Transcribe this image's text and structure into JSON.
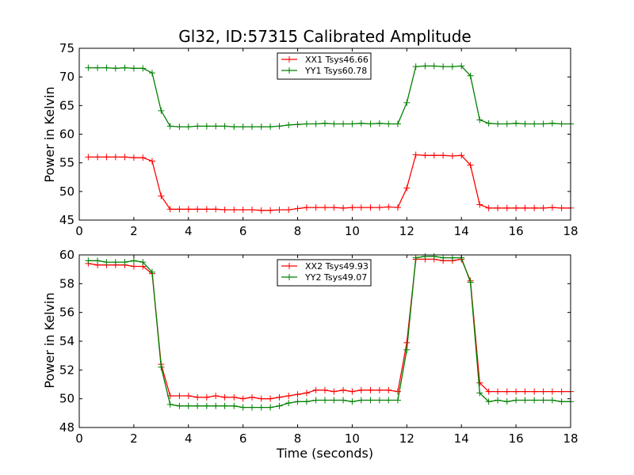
{
  "figure": {
    "title": "Gl32, ID:57315 Calibrated Amplitude",
    "xlabel": "Time (seconds)"
  },
  "chart_data": [
    {
      "type": "line",
      "ylabel": "Power in Kelvin",
      "xlim": [
        0,
        18
      ],
      "ylim": [
        45,
        75
      ],
      "xticks": [
        0,
        2,
        4,
        6,
        8,
        10,
        12,
        14,
        16,
        18
      ],
      "yticks": [
        45,
        50,
        55,
        60,
        65,
        70,
        75
      ],
      "grid": false,
      "legend_position": "top-center",
      "x": [
        0.33,
        0.67,
        1.0,
        1.33,
        1.67,
        2.0,
        2.33,
        2.67,
        3.0,
        3.33,
        3.67,
        4.0,
        4.33,
        4.67,
        5.0,
        5.33,
        5.67,
        6.0,
        6.33,
        6.67,
        7.0,
        7.33,
        7.67,
        8.0,
        8.33,
        8.67,
        9.0,
        9.33,
        9.67,
        10.0,
        10.33,
        10.67,
        11.0,
        11.33,
        11.67,
        12.0,
        12.33,
        12.67,
        13.0,
        13.33,
        13.67,
        14.0,
        14.33,
        14.67,
        15.0,
        15.33,
        15.67,
        16.0,
        16.33,
        16.67,
        17.0,
        17.33,
        17.67,
        18.0
      ],
      "series": [
        {
          "name": "XX1 Tsys46.66",
          "color": "#ff0000",
          "values": [
            56.0,
            56.0,
            56.0,
            56.0,
            56.0,
            55.9,
            55.9,
            55.3,
            49.2,
            46.9,
            46.9,
            46.9,
            46.9,
            46.9,
            46.9,
            46.8,
            46.8,
            46.8,
            46.8,
            46.7,
            46.7,
            46.8,
            46.8,
            47.0,
            47.2,
            47.2,
            47.2,
            47.2,
            47.1,
            47.2,
            47.2,
            47.2,
            47.2,
            47.3,
            47.2,
            50.6,
            56.4,
            56.3,
            56.3,
            56.3,
            56.2,
            56.3,
            54.6,
            47.7,
            47.1,
            47.1,
            47.1,
            47.1,
            47.1,
            47.1,
            47.1,
            47.2,
            47.1,
            47.1
          ]
        },
        {
          "name": "YY1 Tsys60.78",
          "color": "#008000",
          "values": [
            71.6,
            71.6,
            71.6,
            71.5,
            71.6,
            71.5,
            71.5,
            70.7,
            64.1,
            61.4,
            61.3,
            61.3,
            61.4,
            61.4,
            61.4,
            61.4,
            61.3,
            61.3,
            61.3,
            61.3,
            61.3,
            61.4,
            61.6,
            61.7,
            61.8,
            61.8,
            61.9,
            61.8,
            61.8,
            61.8,
            61.9,
            61.8,
            61.9,
            61.8,
            61.8,
            65.5,
            71.8,
            71.9,
            71.9,
            71.8,
            71.8,
            71.9,
            70.2,
            62.5,
            61.9,
            61.8,
            61.8,
            61.9,
            61.8,
            61.8,
            61.8,
            61.9,
            61.8,
            61.8
          ]
        }
      ]
    },
    {
      "type": "line",
      "ylabel": "Power in Kelvin",
      "xlim": [
        0,
        18
      ],
      "ylim": [
        48,
        60
      ],
      "xticks": [
        0,
        2,
        4,
        6,
        8,
        10,
        12,
        14,
        16,
        18
      ],
      "yticks": [
        48,
        50,
        52,
        54,
        56,
        58,
        60
      ],
      "grid": false,
      "legend_position": "top-center",
      "x": [
        0.33,
        0.67,
        1.0,
        1.33,
        1.67,
        2.0,
        2.33,
        2.67,
        3.0,
        3.33,
        3.67,
        4.0,
        4.33,
        4.67,
        5.0,
        5.33,
        5.67,
        6.0,
        6.33,
        6.67,
        7.0,
        7.33,
        7.67,
        8.0,
        8.33,
        8.67,
        9.0,
        9.33,
        9.67,
        10.0,
        10.33,
        10.67,
        11.0,
        11.33,
        11.67,
        12.0,
        12.33,
        12.67,
        13.0,
        13.33,
        13.67,
        14.0,
        14.33,
        14.67,
        15.0,
        15.33,
        15.67,
        16.0,
        16.33,
        16.67,
        17.0,
        17.33,
        17.67,
        18.0
      ],
      "series": [
        {
          "name": "XX2 Tsys49.93",
          "color": "#ff0000",
          "values": [
            59.4,
            59.3,
            59.3,
            59.3,
            59.3,
            59.2,
            59.2,
            58.7,
            52.4,
            50.2,
            50.2,
            50.2,
            50.1,
            50.1,
            50.2,
            50.1,
            50.1,
            50.0,
            50.1,
            50.0,
            50.0,
            50.1,
            50.2,
            50.3,
            50.4,
            50.6,
            50.6,
            50.5,
            50.6,
            50.5,
            50.6,
            50.6,
            50.6,
            50.6,
            50.5,
            53.9,
            59.7,
            59.7,
            59.7,
            59.6,
            59.6,
            59.7,
            58.2,
            51.1,
            50.5,
            50.5,
            50.5,
            50.5,
            50.5,
            50.5,
            50.5,
            50.5,
            50.5,
            50.5
          ]
        },
        {
          "name": "YY2 Tsys49.07",
          "color": "#008000",
          "values": [
            59.6,
            59.6,
            59.5,
            59.5,
            59.5,
            59.6,
            59.5,
            58.8,
            52.2,
            49.6,
            49.5,
            49.5,
            49.5,
            49.5,
            49.5,
            49.5,
            49.5,
            49.4,
            49.4,
            49.4,
            49.4,
            49.5,
            49.7,
            49.8,
            49.8,
            49.9,
            49.9,
            49.9,
            49.9,
            49.8,
            49.9,
            49.9,
            49.9,
            49.9,
            49.9,
            53.4,
            59.8,
            59.9,
            59.9,
            59.8,
            59.8,
            59.8,
            58.1,
            50.4,
            49.8,
            49.9,
            49.8,
            49.9,
            49.9,
            49.9,
            49.9,
            49.9,
            49.8,
            49.8
          ]
        }
      ]
    }
  ]
}
